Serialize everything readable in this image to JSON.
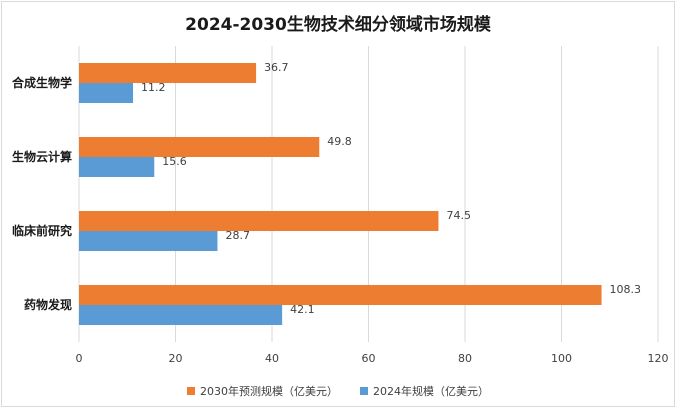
{
  "title": "2024-2030生物技术细分领域市场规模",
  "colors": {
    "series_2030": "#ed7d31",
    "series_2024": "#5b9bd5"
  },
  "chart_data": {
    "type": "bar",
    "orientation": "horizontal",
    "title": "2024-2030生物技术细分领域市场规模",
    "xlabel": "",
    "ylabel": "",
    "categories": [
      "合成生物学",
      "生物云计算",
      "临床前研究",
      "药物发现"
    ],
    "series": [
      {
        "name": "2030年预测规模（亿美元）",
        "values": [
          36.7,
          49.8,
          74.5,
          108.3
        ],
        "color": "#ed7d31"
      },
      {
        "name": "2024年规模（亿美元）",
        "values": [
          11.2,
          15.6,
          28.7,
          42.1
        ],
        "color": "#5b9bd5"
      }
    ],
    "xlim": [
      0,
      120
    ],
    "xticks": [
      0,
      20,
      40,
      60,
      80,
      100,
      120
    ],
    "grid": true,
    "legend_position": "bottom"
  }
}
